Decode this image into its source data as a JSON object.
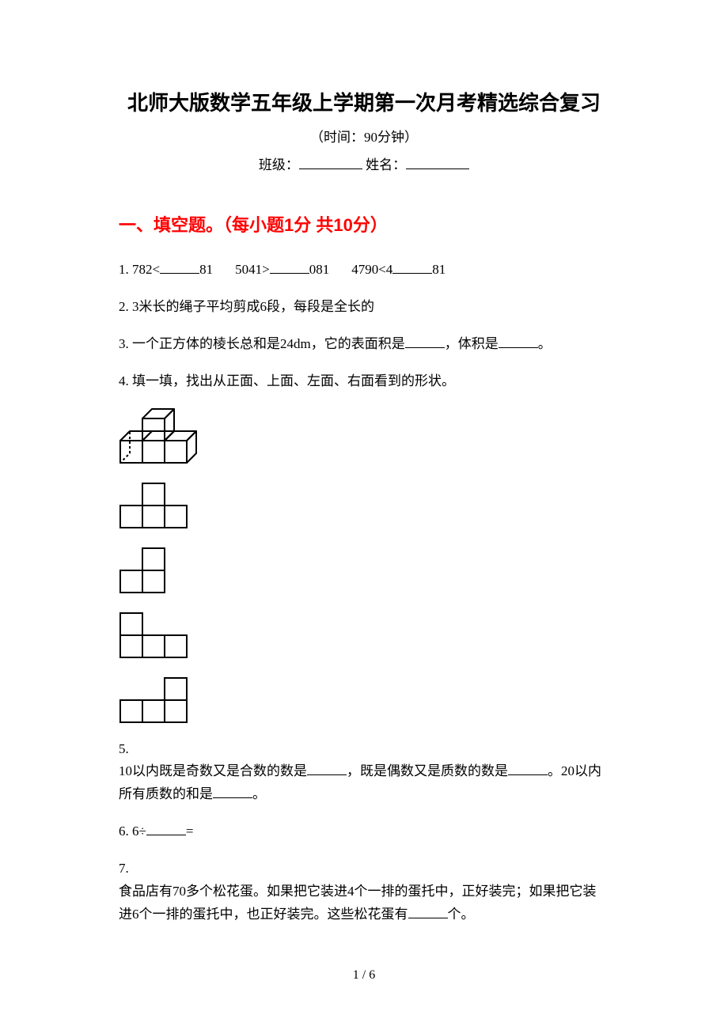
{
  "document": {
    "title": "北师大版数学五年级上学期第一次月考精选综合复习",
    "subtitle": "（时间：90分钟）",
    "class_label": "班级：",
    "name_label": " 姓名：",
    "page_number": "1 / 6"
  },
  "section1": {
    "header": "一、填空题。（每小题1分 共10分）"
  },
  "q1": {
    "num": "1. ",
    "p1": "782<",
    "p2": "81",
    "p3": "5041>",
    "p4": "081",
    "p5": "4790<4",
    "p6": "81"
  },
  "q2": {
    "num": "2. ",
    "text": "3米长的绳子平均剪成6段，每段是全长的"
  },
  "q3": {
    "num": "3. ",
    "p1": "一个正方体的棱长总和是24dm，它的表面积是",
    "p2": "，体积是",
    "p3": "。"
  },
  "q4": {
    "num": "4. ",
    "text": "填一填，找出从正面、上面、左面、右面看到的形状。"
  },
  "q5": {
    "num": "5.",
    "p1": "10以内既是奇数又是合数的数是",
    "p2": "，既是偶数又是质数的数是",
    "p3": "。20以内所有质数的和是",
    "p4": "。"
  },
  "q6": {
    "num": "6. ",
    "p1": "6÷",
    "p2": "="
  },
  "q7": {
    "num": "7.",
    "p1": "食品店有70多个松花蛋。如果把它装进4个一排的蛋托中，正好装完；如果把它装进6个一排的蛋托中，也正好装完。这些松花蛋有",
    "p2": "个。"
  },
  "shapes": {
    "cell": 28,
    "stroke": "#000000",
    "stroke_width": 2,
    "iso": {
      "width": 110,
      "height": 70
    },
    "shape2": {
      "cells": [
        [
          1,
          0
        ],
        [
          0,
          1
        ],
        [
          1,
          1
        ],
        [
          2,
          1
        ]
      ]
    },
    "shape3": {
      "cells": [
        [
          1,
          0
        ],
        [
          0,
          1
        ],
        [
          1,
          1
        ]
      ]
    },
    "shape4": {
      "cells": [
        [
          0,
          0
        ],
        [
          0,
          1
        ],
        [
          1,
          1
        ],
        [
          2,
          1
        ]
      ]
    },
    "shape5": {
      "cells": [
        [
          2,
          0
        ],
        [
          0,
          1
        ],
        [
          1,
          1
        ],
        [
          2,
          1
        ]
      ]
    }
  }
}
